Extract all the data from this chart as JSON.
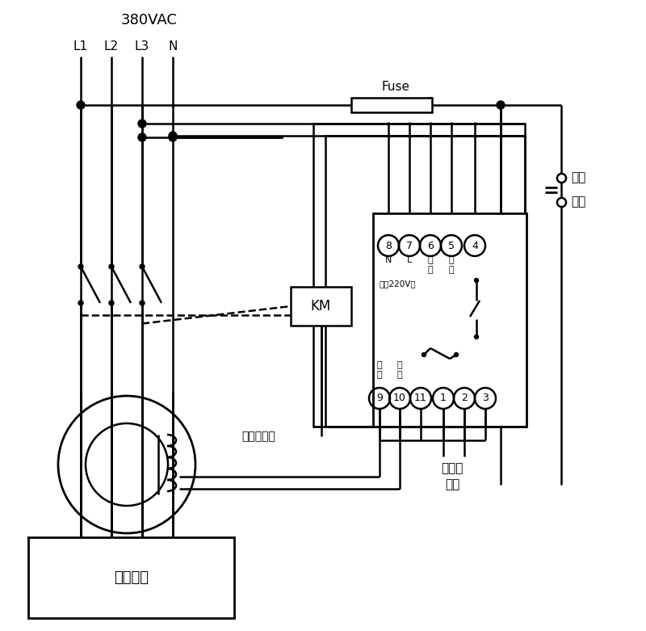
{
  "bg_color": "#ffffff",
  "line_color": "#000000",
  "voltage_label": "380VAC",
  "phase_labels": [
    "L1",
    "L2",
    "L3",
    "N"
  ],
  "fuse_label": "Fuse",
  "km_label": "KM",
  "zero_seq_label": "零序互感器",
  "user_device_label": "用户设备",
  "alarm_label1": "接声光",
  "alarm_label2": "报警",
  "self_lock_label1": "自锁",
  "self_lock_label2": "开关",
  "terminal_top": [
    "8",
    "7",
    "6",
    "5",
    "4"
  ],
  "terminal_top_lbl1": [
    "N",
    "L",
    "试",
    "试",
    ""
  ],
  "terminal_top_lbl2": [
    "",
    "",
    "验",
    "验",
    ""
  ],
  "terminal_top_sublabel": "电源220V～",
  "terminal_bottom": [
    "9",
    "10",
    "11",
    "1",
    "2",
    "3"
  ],
  "terminal_bot_lbl1": [
    "信",
    "信",
    "",
    "",
    "",
    ""
  ],
  "terminal_bot_lbl2": [
    "号",
    "号",
    "",
    "",
    "",
    ""
  ],
  "lw": 1.8,
  "lw_thick": 2.0
}
